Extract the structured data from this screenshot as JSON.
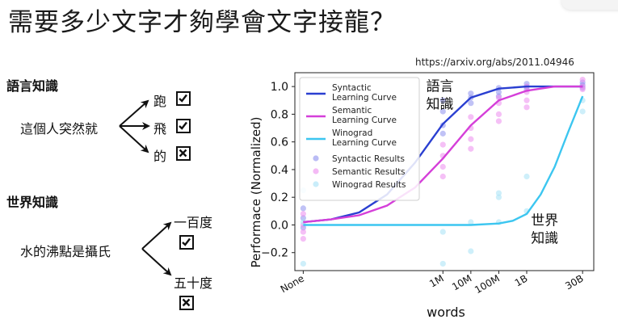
{
  "slide": {
    "title": "需要多少文字才夠學會文字接龍？",
    "source_url": "https://arxiv.org/abs/2011.04946"
  },
  "linguistic": {
    "heading": "語言知識",
    "prompt": "這個人突然就",
    "options": [
      {
        "label": "跑",
        "mark": "check"
      },
      {
        "label": "飛",
        "mark": "check"
      },
      {
        "label": "的",
        "mark": "cross"
      }
    ]
  },
  "world": {
    "heading": "世界知識",
    "prompt": "水的沸點是攝氏",
    "options": [
      {
        "label": "一百度",
        "mark": "check"
      },
      {
        "label": "五十度",
        "mark": "cross"
      }
    ]
  },
  "chart_data": {
    "type": "line",
    "xlabel": "words",
    "ylabel": "Performace (Normalized)",
    "x_ticks": [
      "None",
      "1M",
      "10M",
      "100M",
      "1B",
      "30B"
    ],
    "ylim": [
      -0.33,
      1.1
    ],
    "y_ticks": [
      -0.2,
      0.0,
      0.2,
      0.4,
      0.6,
      0.8,
      1.0
    ],
    "legend_position": "top-left",
    "annotations": [
      {
        "text_lines": [
          "語言",
          "知識"
        ],
        "x_index": 4.4,
        "y": 0.97
      },
      {
        "text_lines": [
          "世界",
          "知識"
        ],
        "x_index": 8.15,
        "y": 0.0
      }
    ],
    "series": [
      {
        "name": "Syntactic Learning Curve",
        "kind": "line",
        "color": "#2a3fd1",
        "points": [
          [
            0,
            0.02
          ],
          [
            1,
            0.04
          ],
          [
            2,
            0.09
          ],
          [
            3,
            0.22
          ],
          [
            4,
            0.45
          ],
          [
            5,
            0.73
          ],
          [
            6,
            0.92
          ],
          [
            7,
            0.985
          ],
          [
            8,
            1.0
          ],
          [
            9,
            1.0
          ],
          [
            10,
            1.0
          ]
        ]
      },
      {
        "name": "Semantic Learning Curve",
        "kind": "line",
        "color": "#d53fd9",
        "points": [
          [
            0,
            0.02
          ],
          [
            1,
            0.04
          ],
          [
            2,
            0.07
          ],
          [
            3,
            0.14
          ],
          [
            4,
            0.27
          ],
          [
            5,
            0.48
          ],
          [
            6,
            0.72
          ],
          [
            7,
            0.9
          ],
          [
            8,
            0.97
          ],
          [
            9,
            1.0
          ],
          [
            10,
            1.0
          ]
        ]
      },
      {
        "name": "Winograd Learning Curve",
        "kind": "line",
        "color": "#3cc6f0",
        "points": [
          [
            0,
            0.0
          ],
          [
            2,
            0.0
          ],
          [
            4,
            0.0
          ],
          [
            6,
            0.0
          ],
          [
            7,
            0.01
          ],
          [
            7.5,
            0.03
          ],
          [
            8,
            0.08
          ],
          [
            8.5,
            0.22
          ],
          [
            9,
            0.42
          ],
          [
            9.5,
            0.68
          ],
          [
            10,
            0.93
          ]
        ]
      },
      {
        "name": "Syntactic Results",
        "kind": "scatter",
        "color": "#8c90ef",
        "points": [
          [
            0,
            0.05
          ],
          [
            0,
            0.12
          ],
          [
            0,
            -0.02
          ],
          [
            5,
            0.72
          ],
          [
            5,
            0.82
          ],
          [
            5,
            0.9
          ],
          [
            5,
            0.66
          ],
          [
            6,
            0.88
          ],
          [
            6,
            0.95
          ],
          [
            6,
            0.92
          ],
          [
            7,
            0.96
          ],
          [
            7,
            0.99
          ],
          [
            7,
            0.93
          ],
          [
            8,
            1.0
          ],
          [
            8,
            0.98
          ],
          [
            8,
            1.02
          ],
          [
            10,
            1.01
          ],
          [
            10,
            0.99
          ],
          [
            10,
            1.03
          ]
        ]
      },
      {
        "name": "Semantic Results",
        "kind": "scatter",
        "color": "#ec8cee",
        "points": [
          [
            0,
            0.0
          ],
          [
            0,
            -0.05
          ],
          [
            0,
            -0.1
          ],
          [
            0,
            0.08
          ],
          [
            5,
            0.5
          ],
          [
            5,
            0.42
          ],
          [
            5,
            0.58
          ],
          [
            5,
            0.35
          ],
          [
            6,
            0.62
          ],
          [
            6,
            0.7
          ],
          [
            6,
            0.78
          ],
          [
            6,
            0.55
          ],
          [
            7,
            0.8
          ],
          [
            7,
            0.88
          ],
          [
            7,
            0.92
          ],
          [
            7,
            0.75
          ],
          [
            8,
            0.9
          ],
          [
            8,
            0.96
          ],
          [
            8,
            1.0
          ],
          [
            8,
            0.85
          ],
          [
            10,
            1.0
          ],
          [
            10,
            0.98
          ],
          [
            10,
            1.05
          ]
        ]
      },
      {
        "name": "Winograd Results",
        "kind": "scatter",
        "color": "#a5e1f6",
        "points": [
          [
            0,
            0.25
          ],
          [
            0,
            -0.28
          ],
          [
            0,
            0.02
          ],
          [
            5,
            -0.05
          ],
          [
            5,
            -0.28
          ],
          [
            6,
            0.02
          ],
          [
            6,
            -0.19
          ],
          [
            7,
            0.2
          ],
          [
            7,
            0.23
          ],
          [
            7,
            0.02
          ],
          [
            8,
            0.35
          ],
          [
            8,
            0.1
          ],
          [
            10,
            0.82
          ],
          [
            10,
            0.9
          ]
        ]
      }
    ]
  }
}
